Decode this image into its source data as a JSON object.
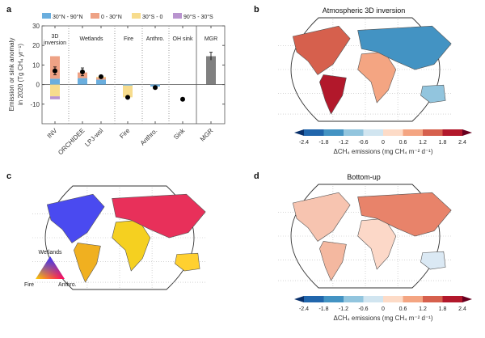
{
  "panels": {
    "a": {
      "letter": "a"
    },
    "b": {
      "letter": "b",
      "title": "Atmospheric 3D inversion"
    },
    "c": {
      "letter": "c"
    },
    "d": {
      "letter": "d",
      "title": "Bottom-up"
    }
  },
  "colorbar": {
    "ticks": [
      "-2.4",
      "-1.8",
      "-1.2",
      "-0.6",
      "0",
      "0.6",
      "1.2",
      "1.8",
      "2.4"
    ],
    "colors": [
      "#08306b",
      "#2166ac",
      "#4393c3",
      "#92c5de",
      "#d1e5f0",
      "#fddbc7",
      "#f4a582",
      "#d6604d",
      "#b2182b",
      "#67001f"
    ],
    "label": "ΔCH₄ emissions (mg CH₄ m⁻² d⁻¹)"
  },
  "ternary_legend": {
    "top": "Wetlands",
    "left": "Fire",
    "right": "Anthro."
  },
  "chart_data": [
    {
      "type": "bar",
      "panel": "a",
      "ylabel": "Emission or sink anomaly in 2020 (Tg CH₄ yr⁻¹)",
      "ylim": [
        -20,
        30
      ],
      "yticks": [
        -10,
        0,
        10,
        20,
        30
      ],
      "categories": [
        "INV",
        "ORCHIDEE",
        "LPJ-wsl",
        "Fire",
        "Anthro.",
        "Sink",
        "MGR"
      ],
      "groups": [
        "3D inversion",
        "Wetlands",
        "Fire",
        "Anthro.",
        "OH sink",
        "MGR"
      ],
      "legend": [
        {
          "name": "30°N - 90°N",
          "color": "#6aaede"
        },
        {
          "name": "0 - 30°N",
          "color": "#eea285"
        },
        {
          "name": "30°S - 0",
          "color": "#f7dc8d"
        },
        {
          "name": "90°S - 30°S",
          "color": "#b994cf"
        }
      ],
      "legend_position": "top",
      "series": [
        {
          "name": "30°N - 90°N",
          "values": [
            3.0,
            3.3,
            2.5,
            -0.5,
            -1.0,
            0,
            0
          ]
        },
        {
          "name": "0 - 30°N",
          "values": [
            11.5,
            2.9,
            1.0,
            0,
            0,
            0,
            0
          ]
        },
        {
          "name": "30°S - 0",
          "values": [
            -6.0,
            0,
            0.5,
            -6.0,
            0,
            0,
            0
          ]
        },
        {
          "name": "90°S - 30°S",
          "values": [
            -1.5,
            0,
            0,
            0,
            0,
            0,
            0
          ]
        }
      ],
      "totals": [
        7.0,
        6.5,
        4.0,
        -6.5,
        -1.5,
        -7.5,
        null
      ],
      "total_errors": [
        [
          5.0,
          9.0
        ],
        [
          4.5,
          8.5
        ],
        [
          3.3,
          4.6
        ],
        null,
        null,
        null,
        null
      ],
      "mgr": {
        "value": 14.5,
        "error": [
          12.5,
          16.5
        ],
        "color": "#808080"
      }
    }
  ]
}
